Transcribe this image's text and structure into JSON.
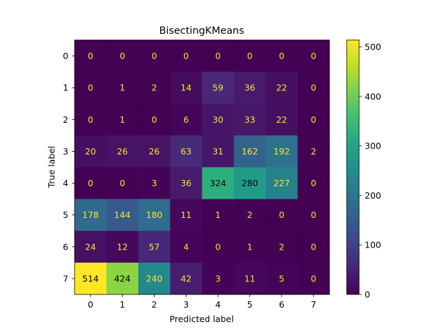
{
  "chart_data": {
    "type": "heatmap",
    "title": "BisectingKMeans",
    "xlabel": "Predicted label",
    "ylabel": "True label",
    "x_ticks": [
      "0",
      "1",
      "2",
      "3",
      "4",
      "5",
      "6",
      "7"
    ],
    "y_ticks": [
      "0",
      "1",
      "2",
      "3",
      "4",
      "5",
      "6",
      "7"
    ],
    "matrix": [
      [
        0,
        0,
        0,
        0,
        0,
        0,
        0,
        0
      ],
      [
        0,
        1,
        2,
        14,
        59,
        36,
        22,
        0
      ],
      [
        0,
        1,
        0,
        6,
        30,
        33,
        22,
        0
      ],
      [
        20,
        26,
        26,
        63,
        31,
        162,
        192,
        2
      ],
      [
        0,
        0,
        3,
        36,
        324,
        280,
        227,
        0
      ],
      [
        178,
        144,
        180,
        11,
        1,
        2,
        0,
        0
      ],
      [
        24,
        12,
        57,
        4,
        0,
        1,
        2,
        0
      ],
      [
        514,
        424,
        240,
        42,
        3,
        11,
        5,
        0
      ]
    ],
    "colorbar": {
      "colormap": "viridis",
      "range": [
        0,
        514
      ],
      "ticks": [
        0,
        100,
        200,
        300,
        400,
        500
      ]
    },
    "grid": false
  }
}
